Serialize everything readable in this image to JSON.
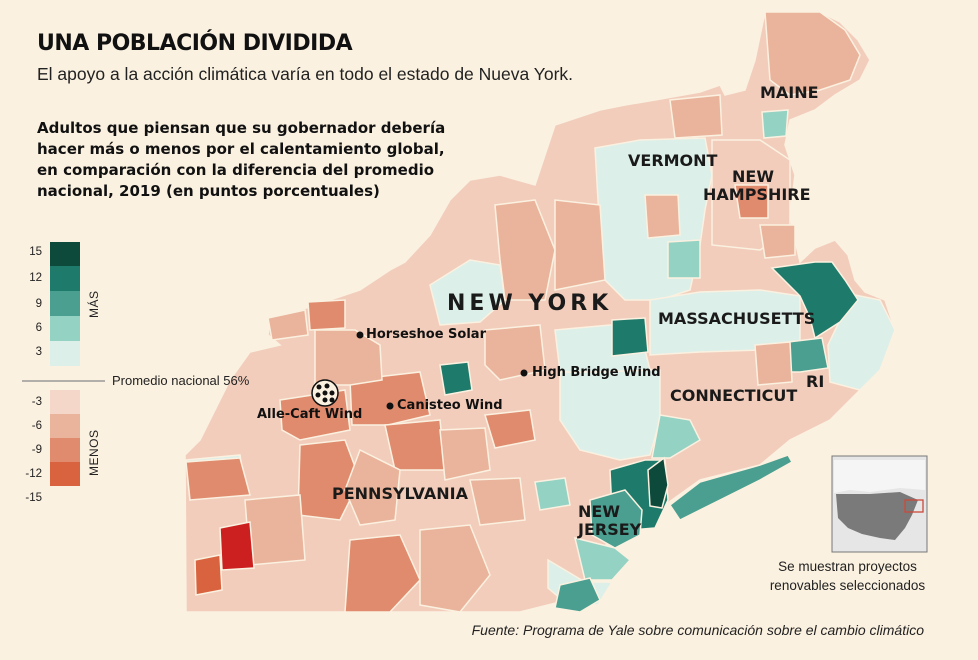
{
  "title": "UNA POBLACIÓN DIVIDIDA",
  "subtitle": "El apoyo a la acción climática varía en todo el estado de Nueva York.",
  "explanation": "Adultos que piensan que su gobernador debería hacer más o menos por el calentamiento global, en comparación con la diferencia del promedio nacional, 2019 (en puntos porcentuales)",
  "legend": {
    "more_label": "MÁS",
    "less_label": "MENOS",
    "national_average_label": "Promedio nacional 56%",
    "more_ticks": [
      "15",
      "12",
      "9",
      "6",
      "3"
    ],
    "less_ticks": [
      "-3",
      "-6",
      "-9",
      "-12",
      "-15"
    ],
    "more_colors": [
      "#0d4a3c",
      "#1e7a6a",
      "#4a9f90",
      "#94d2c4",
      "#dcefe9"
    ],
    "less_colors": [
      "#f4d7c9",
      "#eab39b",
      "#e08b6e",
      "#d9633f"
    ]
  },
  "states": {
    "new_york": "NEW YORK",
    "vermont": "VERMONT",
    "maine": "MAINE",
    "new_hampshire": "NEW HAMPSHIRE",
    "massachusetts": "MASSACHUSETTS",
    "connecticut": "CONNECTICUT",
    "rhode_island": "RI",
    "new_jersey": "NEW JERSEY",
    "pennsylvania": "PENNSYLVANIA"
  },
  "projects": {
    "horseshoe": "Horseshoe Solar",
    "high_bridge": "High Bridge Wind",
    "canisteo": "Canisteo Wind",
    "alle_caft": "Alle-Caft Wind"
  },
  "inset_note": "Se muestran proyectos renovables seleccionados",
  "source": "Fuente: Programa de Yale sobre comunicación sobre el cambio climático"
}
